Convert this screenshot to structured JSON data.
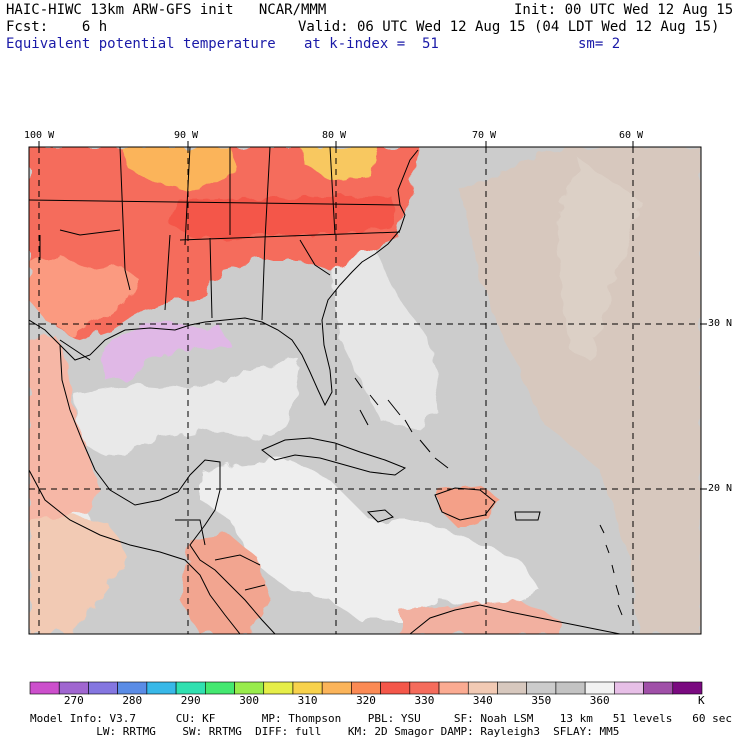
{
  "header": {
    "title": "HAIC-HIWC 13km ARW-GFS init   NCAR/MMM",
    "init": "Init: 00 UTC Wed 12 Aug 15",
    "fcst": "Fcst:    6 h",
    "valid": "Valid: 06 UTC Wed 12 Aug 15 (04 LDT Wed 12 Aug 15)",
    "field": "Equivalent potential temperature",
    "level": "at k-index =  51",
    "smooth": "sm= 2"
  },
  "axes": {
    "lon_labels": [
      "100 W",
      "90 W",
      "80 W",
      "70 W",
      "60 W"
    ],
    "lat_labels": [
      "30 N",
      "20 N"
    ]
  },
  "colorbar": {
    "colors": [
      "#cc4fcc",
      "#a066d0",
      "#8476e0",
      "#5a8ce6",
      "#38b8e8",
      "#30e0b0",
      "#44e870",
      "#98ec4c",
      "#e6ee48",
      "#f8d24c",
      "#fbb45a",
      "#fb8a54",
      "#f4574a",
      "#f56c5c",
      "#fbab92",
      "#f2cab4",
      "#d7c8be",
      "#cccccc",
      "#c3c3c3",
      "#f2f2f2",
      "#e7bfe7",
      "#a050a8",
      "#7a0a80"
    ],
    "labels": [
      "270",
      "280",
      "290",
      "300",
      "310",
      "320",
      "330",
      "340",
      "350",
      "360"
    ],
    "unit": "K"
  },
  "footer": {
    "line1": "Model Info: V3.7      CU: KF       MP: Thompson    PBL: YSU     SF: Noah LSM    13 km   51 levels   60 sec",
    "line2": "          LW: RRTMG    SW: RRTMG  DIFF: full    KM: 2D Smagor DAMP: Rayleigh3  SFLAY: MM5"
  }
}
